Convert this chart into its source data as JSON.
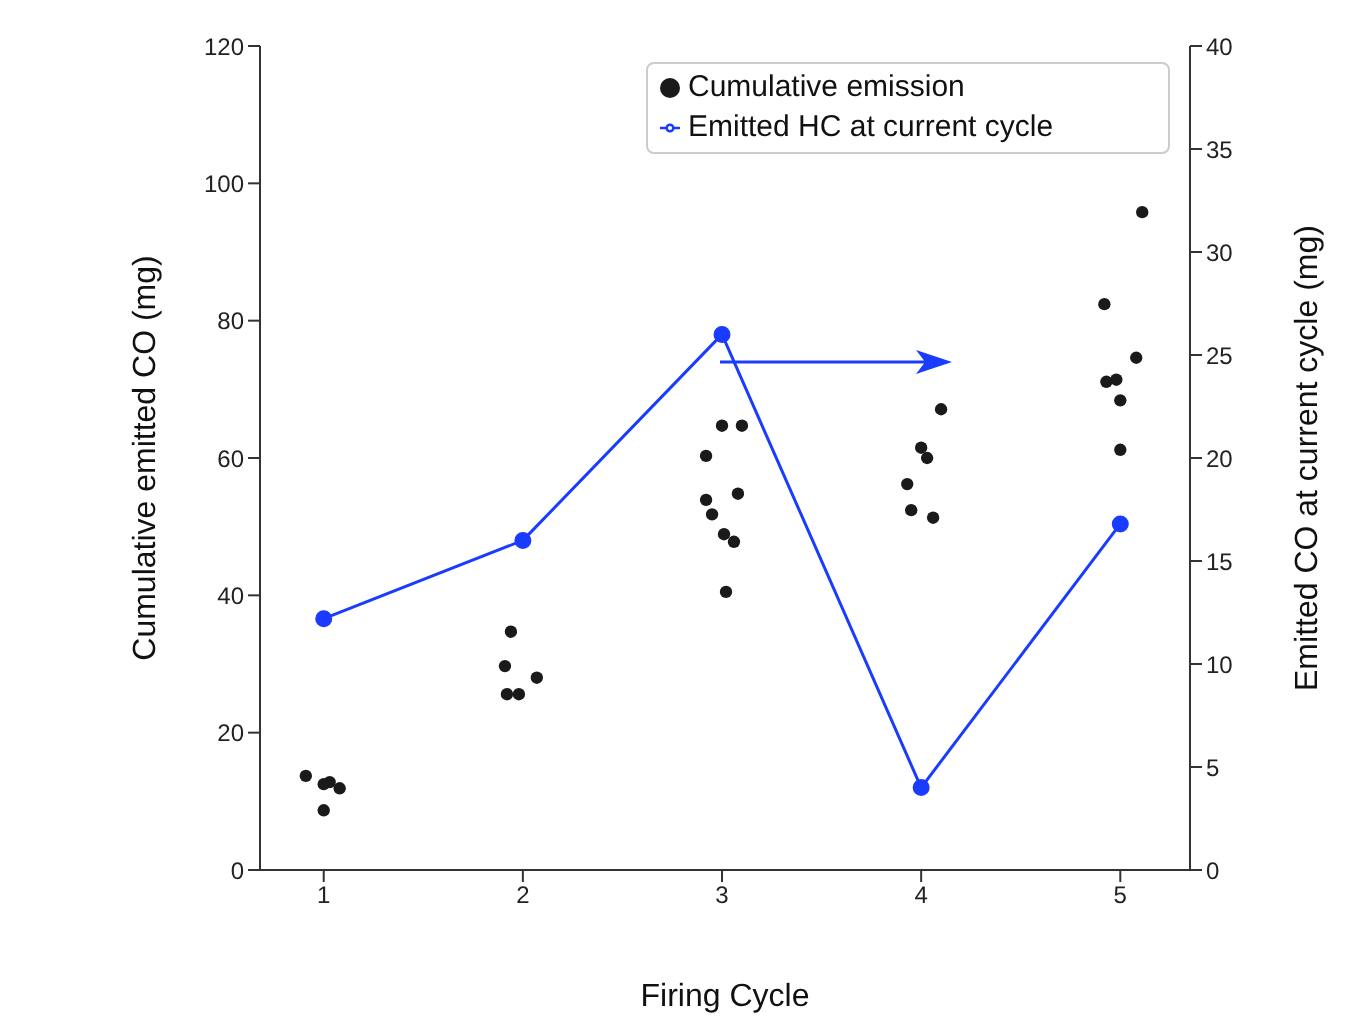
{
  "chart_data": {
    "type": "scatter",
    "xlabel": "Firing Cycle",
    "ylabel": "Cumulative emitted CO (mg)",
    "y2label": "Emitted CO at current cycle (mg)",
    "xlim": [
      0.68,
      5.35
    ],
    "xticks": [
      1,
      2,
      3,
      4,
      5
    ],
    "ylim": [
      0,
      120
    ],
    "yticks": [
      0,
      20,
      40,
      60,
      80,
      100,
      120
    ],
    "y2lim": [
      0,
      40
    ],
    "y2ticks": [
      0,
      5,
      10,
      15,
      20,
      25,
      30,
      35,
      40
    ],
    "grid": false,
    "legend": "top right",
    "marker": "circle",
    "series": [
      {
        "name": "Cumulative emission",
        "color": "#1a1a1a",
        "x": [
          0.91,
          1.0,
          1.03,
          1.08,
          1.0,
          1.94,
          1.91,
          2.07,
          1.92,
          1.98,
          3.0,
          3.1,
          2.92,
          3.08,
          2.92,
          2.95,
          3.01,
          3.06,
          3.02,
          4.1,
          4.0,
          4.03,
          3.93,
          3.95,
          4.06,
          5.11,
          4.92,
          5.08,
          4.93,
          4.98,
          5.0,
          5.0
        ],
        "values": [
          13.7,
          12.5,
          12.8,
          11.9,
          8.7,
          34.7,
          29.7,
          28,
          25.6,
          25.6,
          64.7,
          64.7,
          60.3,
          54.8,
          53.9,
          51.8,
          48.9,
          47.8,
          40.5,
          67.1,
          61.5,
          60,
          56.2,
          52.4,
          51.3,
          95.8,
          82.4,
          74.6,
          71.1,
          71.4,
          68.4,
          61.2
        ]
      },
      {
        "name": "Emitted HC at current cycle",
        "type": "line",
        "axis": "y2",
        "color": "#1a3cff",
        "x": [
          1,
          2,
          3,
          4,
          5
        ],
        "values": [
          12.2,
          16.0,
          26.0,
          4.0,
          16.8
        ]
      }
    ]
  }
}
